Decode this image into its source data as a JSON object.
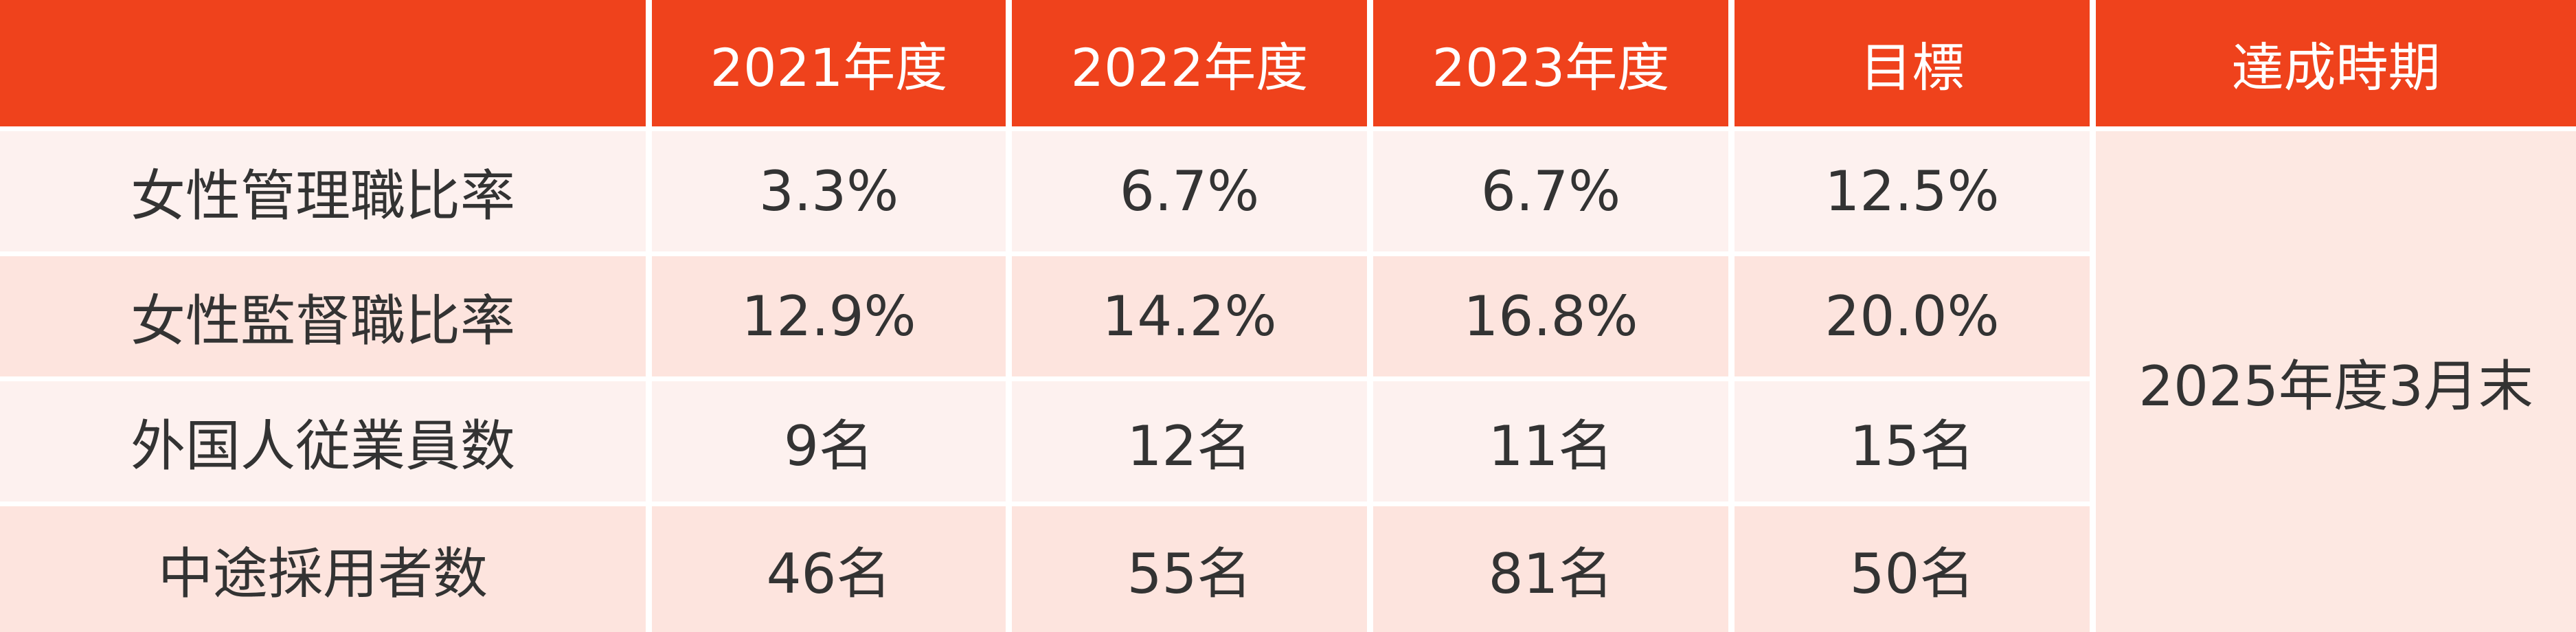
{
  "table": {
    "header": [
      "2021年度",
      "2022年度",
      "2023年度",
      "目標",
      "達成時期"
    ],
    "rows": [
      {
        "label": "女性管理職比率",
        "values": [
          "3.3%",
          "6.7%",
          "6.7%",
          "12.5%"
        ]
      },
      {
        "label": "女性監督職比率",
        "values": [
          "12.9%",
          "14.2%",
          "16.8%",
          "20.0%"
        ]
      },
      {
        "label": "外国人従業員数",
        "values": [
          "9名",
          "12名",
          "11名",
          "15名"
        ]
      },
      {
        "label": "中途採用者数",
        "values": [
          "46名",
          "55名",
          "81名",
          "50名"
        ]
      }
    ],
    "period": "2025年度3月末"
  }
}
